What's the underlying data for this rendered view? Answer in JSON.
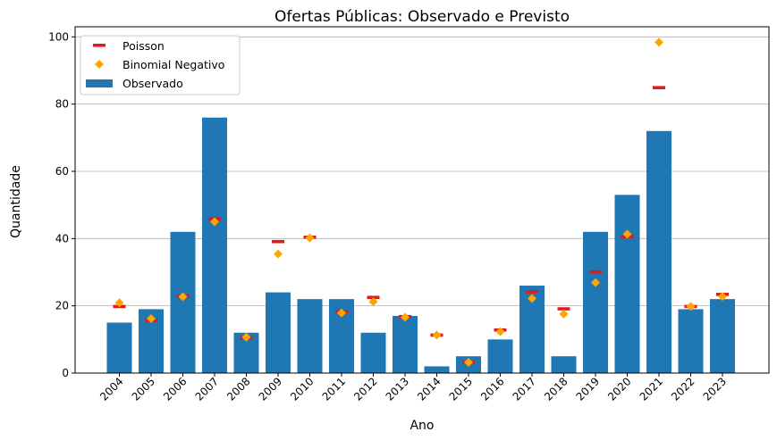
{
  "chart_data": {
    "type": "bar",
    "title": "Ofertas Públicas: Observado e Previsto",
    "xlabel": "Ano",
    "ylabel": "Quantidade",
    "ylim": [
      0,
      103
    ],
    "yticks": [
      0,
      20,
      40,
      60,
      80,
      100
    ],
    "grid": "y",
    "legend_position": "top-left",
    "categories": [
      "2004",
      "2005",
      "2006",
      "2007",
      "2008",
      "2009",
      "2010",
      "2011",
      "2012",
      "2013",
      "2014",
      "2015",
      "2016",
      "2017",
      "2018",
      "2019",
      "2020",
      "2021",
      "2022",
      "2023"
    ],
    "series": [
      {
        "name": "Poisson",
        "type": "marker-hline",
        "color": "#e31a1c",
        "values": [
          19.8,
          15.7,
          22.8,
          45.9,
          10.5,
          39.1,
          40.4,
          18.3,
          22.5,
          16.8,
          11.3,
          3.2,
          12.8,
          24.2,
          19.1,
          30.1,
          40.6,
          84.9,
          19.8,
          23.4
        ]
      },
      {
        "name": "Binomial Negativo",
        "type": "marker-diamond",
        "color": "#ffa500",
        "values": [
          20.9,
          16.2,
          22.7,
          45.0,
          10.7,
          35.4,
          40.2,
          17.9,
          21.2,
          16.6,
          11.3,
          3.2,
          12.3,
          22.2,
          17.6,
          26.9,
          41.3,
          98.4,
          19.8,
          22.8
        ]
      },
      {
        "name": "Observado",
        "type": "bar",
        "color": "#1f77b4",
        "values": [
          15,
          19,
          42,
          76,
          12,
          24,
          22,
          22,
          12,
          17,
          2,
          5,
          10,
          26,
          5,
          42,
          53,
          72,
          19,
          22
        ]
      }
    ]
  }
}
